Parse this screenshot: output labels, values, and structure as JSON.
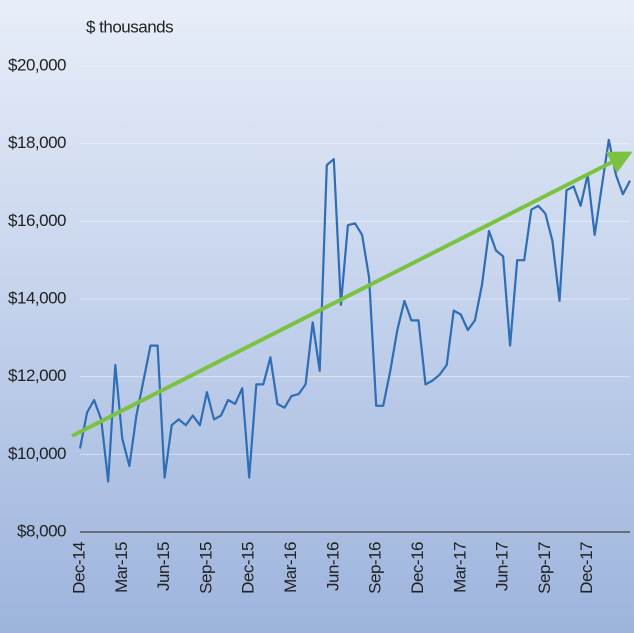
{
  "chart_data": {
    "type": "line",
    "subtitle": "$ thousands",
    "categories": [
      "Dec-14",
      null,
      null,
      null,
      null,
      null,
      "Mar-15",
      null,
      null,
      null,
      null,
      null,
      "Jun-15",
      null,
      null,
      null,
      null,
      null,
      "Sep-15",
      null,
      null,
      null,
      null,
      null,
      "Dec-15",
      null,
      null,
      null,
      null,
      null,
      "Mar-16",
      null,
      null,
      null,
      null,
      null,
      "Jun-16",
      null,
      null,
      null,
      null,
      null,
      "Sep-16",
      null,
      null,
      null,
      null,
      null,
      "Dec-16",
      null,
      null,
      null,
      null,
      null,
      "Mar-17",
      null,
      null,
      null,
      null,
      null,
      "Jun-17",
      null,
      null,
      null,
      null,
      null,
      "Sep-17",
      null,
      null,
      null,
      null,
      null,
      "Dec-17",
      null,
      null,
      null,
      null,
      null,
      null
    ],
    "series": [
      {
        "color": "#2f6db5",
        "values": [
          10150,
          11080,
          11400,
          10900,
          9300,
          12300,
          10400,
          9700,
          11000,
          11900,
          12800,
          12800,
          9400,
          10750,
          10900,
          10750,
          11000,
          10750,
          11600,
          10900,
          11000,
          11400,
          11300,
          11700,
          9400,
          11800,
          11800,
          12500,
          11300,
          11200,
          11500,
          11550,
          11800,
          13400,
          12150,
          17450,
          17600,
          13850,
          15900,
          15950,
          15650,
          14550,
          11250,
          11250,
          12150,
          13200,
          13950,
          13450,
          13450,
          11800,
          11900,
          12050,
          12300,
          13700,
          13600,
          13200,
          13450,
          14350,
          15750,
          15250,
          15100,
          12800,
          15000,
          15000,
          16300,
          16400,
          16200,
          15500,
          13950,
          16800,
          16900,
          16400,
          17200,
          15650,
          16900,
          18100,
          17200,
          16700,
          17050
        ]
      }
    ],
    "ylim": [
      8000,
      20000
    ],
    "yticks": [
      {
        "value": 8000,
        "label": "$8,000"
      },
      {
        "value": 10000,
        "label": "$10,000"
      },
      {
        "value": 12000,
        "label": "$12,000"
      },
      {
        "value": 14000,
        "label": "$14,000"
      },
      {
        "value": 16000,
        "label": "$16,000"
      },
      {
        "value": 18000,
        "label": "$18,000"
      },
      {
        "value": 20000,
        "label": "$20,000"
      }
    ],
    "grid": true
  }
}
